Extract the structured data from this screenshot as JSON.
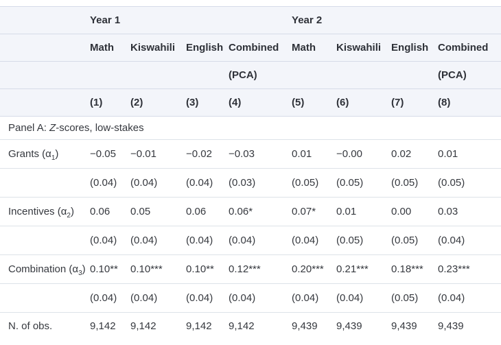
{
  "colors": {
    "header_background": "#f3f5fa",
    "header_border": "#d6dbe8",
    "body_border": "#dde2e8",
    "text": "#35383e"
  },
  "table": {
    "year_groups": {
      "year1": "Year 1",
      "year2": "Year 2"
    },
    "subjects": [
      "Math",
      "Kiswahili",
      "English",
      "Combined",
      "Math",
      "Kiswahili",
      "English",
      "Combined"
    ],
    "pca_row": [
      "",
      "",
      "",
      "(PCA)",
      "",
      "",
      "",
      "(PCA)"
    ],
    "column_numbers": [
      "(1)",
      "(2)",
      "(3)",
      "(4)",
      "(5)",
      "(6)",
      "(7)",
      "(8)"
    ],
    "panel": {
      "prefix": "Panel A: ",
      "z": "Z",
      "suffix": "-scores, low-stakes"
    },
    "rows": [
      {
        "label": {
          "pre": "Grants (α",
          "sub": "1",
          "post": ")"
        },
        "values": [
          "−0.05",
          "−0.01",
          "−0.02",
          "−0.03",
          "0.01",
          "−0.00",
          "0.02",
          "0.01"
        ],
        "se": [
          "(0.04)",
          "(0.04)",
          "(0.04)",
          "(0.03)",
          "(0.05)",
          "(0.05)",
          "(0.05)",
          "(0.05)"
        ]
      },
      {
        "label": {
          "pre": "Incentives (α",
          "sub": "2",
          "post": ")"
        },
        "values": [
          "0.06",
          "0.05",
          "0.06",
          "0.06*",
          "0.07*",
          "0.01",
          "0.00",
          "0.03"
        ],
        "se": [
          "(0.04)",
          "(0.04)",
          "(0.04)",
          "(0.04)",
          "(0.04)",
          "(0.05)",
          "(0.05)",
          "(0.04)"
        ]
      },
      {
        "label": {
          "pre": "Combination (α",
          "sub": "3",
          "post": ")"
        },
        "values": [
          "0.10**",
          "0.10***",
          "0.10**",
          "0.12***",
          "0.20***",
          "0.21***",
          "0.18***",
          "0.23***"
        ],
        "se": [
          "(0.04)",
          "(0.04)",
          "(0.04)",
          "(0.04)",
          "(0.04)",
          "(0.04)",
          "(0.05)",
          "(0.04)"
        ]
      }
    ],
    "footer": {
      "label": "N. of obs.",
      "values": [
        "9,142",
        "9,142",
        "9,142",
        "9,142",
        "9,439",
        "9,439",
        "9,439",
        "9,439"
      ]
    }
  }
}
